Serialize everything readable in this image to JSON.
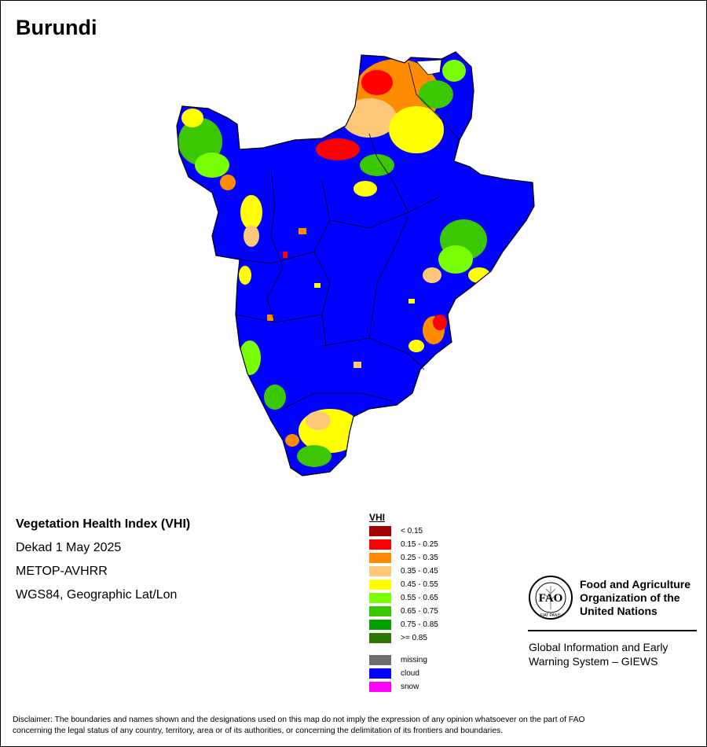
{
  "page": {
    "title": "Burundi"
  },
  "info": {
    "product": "Vegetation Health Index (VHI)",
    "dekad": "Dekad 1 May 2025",
    "sensor": "METOP-AVHRR",
    "projection": "WGS84, Geographic Lat/Lon"
  },
  "legend": {
    "title": "VHI",
    "items": [
      {
        "label": "< 0.15",
        "color": "#a50000"
      },
      {
        "label": "0.15 - 0.25",
        "color": "#ff0000"
      },
      {
        "label": "0.25 - 0.35",
        "color": "#ff8c00"
      },
      {
        "label": "0.35 - 0.45",
        "color": "#ffc878"
      },
      {
        "label": "0.45 - 0.55",
        "color": "#ffff00"
      },
      {
        "label": "0.55 - 0.65",
        "color": "#78ff00"
      },
      {
        "label": "0.65 - 0.75",
        "color": "#3cc800"
      },
      {
        "label": "0.75 - 0.85",
        "color": "#00a000"
      },
      {
        "label": ">= 0.85",
        "color": "#2d7800"
      }
    ],
    "extras": [
      {
        "label": "missing",
        "color": "#6e6e6e"
      },
      {
        "label": "cloud",
        "color": "#0000ff"
      },
      {
        "label": "snow",
        "color": "#ff00ff"
      }
    ]
  },
  "organization": {
    "logo_text": "FAO",
    "logo_motto": "FIAT PANIS",
    "name_line1": "Food and Agriculture",
    "name_line2": "Organization of the",
    "name_line3": "United Nations",
    "system_line1": "Global Information and Early",
    "system_line2": "Warning System – GIEWS"
  },
  "disclaimer": {
    "line1": "Disclaimer: The boundaries and names shown and the designations used on this map do not imply the expression of any opinion whatsoever on the part of FAO",
    "line2": "concerning the legal status of any country, territory, area or of its authorities, or concerning the delimitation of its frontiers and boundaries."
  },
  "map": {
    "background_color": "#0000ff",
    "boundary_color": "#000000"
  }
}
